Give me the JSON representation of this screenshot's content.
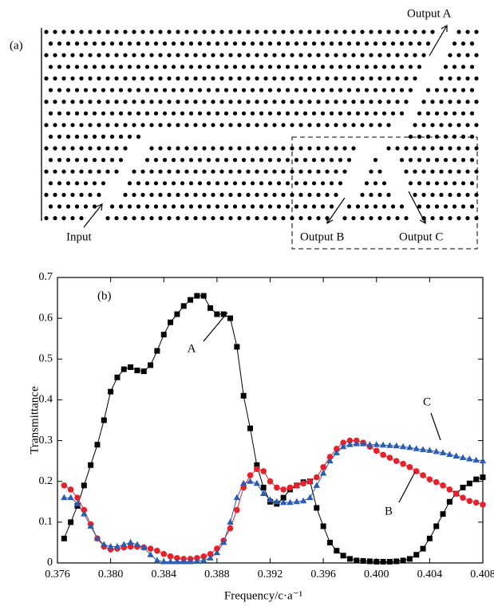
{
  "panel_a": {
    "label": "(a)",
    "output_a": "Output A",
    "input": "Input",
    "output_b": "Output B",
    "output_c": "Output C"
  },
  "chart_data": {
    "type": "line",
    "panel_label": "(b)",
    "ylabel": "Transmittance",
    "xlabel": "Frequency/c·a⁻¹",
    "xlim": [
      0.376,
      0.408
    ],
    "ylim": [
      0,
      0.7
    ],
    "xticks": [
      0.376,
      {
        "value": 0.38,
        "label": "0.380"
      },
      0.384,
      0.388,
      0.392,
      0.396,
      {
        "value": 0.4,
        "label": "0.400"
      },
      0.404,
      0.408
    ],
    "yticks": [
      0,
      0.1,
      0.2,
      0.3,
      0.4,
      0.5,
      0.6,
      0.7
    ],
    "x": [
      0.3765,
      0.377,
      0.3775,
      0.378,
      0.3785,
      0.379,
      0.3795,
      0.38,
      0.3805,
      0.381,
      0.3815,
      0.382,
      0.3825,
      0.383,
      0.3835,
      0.384,
      0.3845,
      0.385,
      0.3855,
      0.386,
      0.3865,
      0.387,
      0.3875,
      0.388,
      0.3885,
      0.389,
      0.3895,
      0.39,
      0.3905,
      0.391,
      0.3915,
      0.392,
      0.3925,
      0.393,
      0.3935,
      0.394,
      0.3945,
      0.395,
      0.3955,
      0.396,
      0.3965,
      0.397,
      0.3975,
      0.398,
      0.3985,
      0.399,
      0.3995,
      0.4,
      0.4005,
      0.401,
      0.4015,
      0.402,
      0.4025,
      0.403,
      0.4035,
      0.404,
      0.4045,
      0.405,
      0.4055,
      0.406,
      0.4065,
      0.407,
      0.4075,
      0.408
    ],
    "series": [
      {
        "name": "A",
        "color": "#000000",
        "marker": "square",
        "values": [
          0.06,
          0.1,
          0.14,
          0.19,
          0.24,
          0.29,
          0.35,
          0.42,
          0.455,
          0.475,
          0.48,
          0.472,
          0.47,
          0.485,
          0.52,
          0.56,
          0.59,
          0.61,
          0.63,
          0.645,
          0.655,
          0.655,
          0.625,
          0.61,
          0.61,
          0.6,
          0.53,
          0.41,
          0.33,
          0.24,
          0.185,
          0.15,
          0.145,
          0.16,
          0.18,
          0.19,
          0.198,
          0.2,
          0.135,
          0.09,
          0.05,
          0.03,
          0.018,
          0.01,
          0.006,
          0.005,
          0.004,
          0.003,
          0.003,
          0.003,
          0.004,
          0.006,
          0.01,
          0.02,
          0.035,
          0.06,
          0.09,
          0.12,
          0.15,
          0.17,
          0.185,
          0.195,
          0.205,
          0.21
        ]
      },
      {
        "name": "B",
        "color": "#e8202a",
        "marker": "circle",
        "values": [
          0.19,
          0.18,
          0.16,
          0.13,
          0.095,
          0.06,
          0.04,
          0.033,
          0.035,
          0.038,
          0.04,
          0.04,
          0.038,
          0.035,
          0.03,
          0.022,
          0.016,
          0.012,
          0.01,
          0.01,
          0.012,
          0.016,
          0.022,
          0.035,
          0.055,
          0.085,
          0.13,
          0.185,
          0.215,
          0.23,
          0.225,
          0.2,
          0.185,
          0.18,
          0.185,
          0.19,
          0.195,
          0.2,
          0.21,
          0.235,
          0.26,
          0.28,
          0.295,
          0.3,
          0.3,
          0.295,
          0.285,
          0.275,
          0.265,
          0.258,
          0.25,
          0.243,
          0.235,
          0.225,
          0.215,
          0.205,
          0.198,
          0.19,
          0.18,
          0.17,
          0.16,
          0.152,
          0.148,
          0.143
        ]
      },
      {
        "name": "C",
        "color": "#2a5db0",
        "marker": "triangle",
        "values": [
          0.16,
          0.16,
          0.145,
          0.12,
          0.09,
          0.06,
          0.045,
          0.04,
          0.04,
          0.045,
          0.05,
          0.045,
          0.038,
          0.02,
          0.006,
          0.003,
          0.003,
          0.003,
          0.003,
          0.003,
          0.004,
          0.006,
          0.012,
          0.025,
          0.05,
          0.1,
          0.16,
          0.195,
          0.2,
          0.195,
          0.17,
          0.155,
          0.15,
          0.148,
          0.148,
          0.15,
          0.152,
          0.16,
          0.19,
          0.22,
          0.25,
          0.27,
          0.285,
          0.29,
          0.292,
          0.292,
          0.29,
          0.29,
          0.289,
          0.288,
          0.287,
          0.285,
          0.283,
          0.28,
          0.278,
          0.276,
          0.273,
          0.27,
          0.266,
          0.262,
          0.258,
          0.255,
          0.252,
          0.25
        ]
      }
    ]
  }
}
